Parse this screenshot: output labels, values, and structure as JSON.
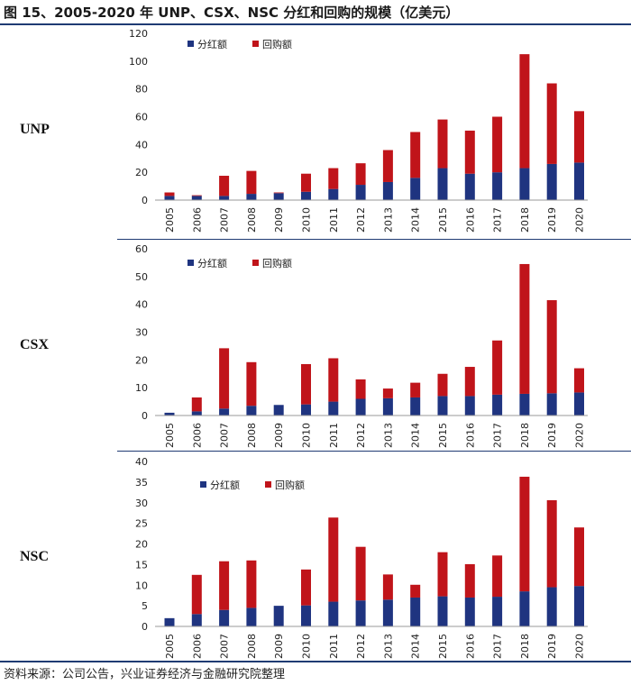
{
  "title": "图 15、2005-2020 年 UNP、CSX、NSC 分红和回购的规模（亿美元）",
  "source": "资料来源：公司公告，兴业证券经济与金融研究院整理",
  "colors": {
    "dividend": "#1f3480",
    "buyback": "#c0141a"
  },
  "chart_data": [
    {
      "type": "bar",
      "stacked": true,
      "label": "UNP",
      "categories": [
        "2005",
        "2006",
        "2007",
        "2008",
        "2009",
        "2010",
        "2011",
        "2012",
        "2013",
        "2014",
        "2015",
        "2016",
        "2017",
        "2018",
        "2019",
        "2020"
      ],
      "series": [
        {
          "name": "分红额",
          "values": [
            3,
            3,
            3,
            4.5,
            5,
            6,
            8,
            11,
            13,
            16,
            23,
            19,
            20,
            23,
            26,
            27
          ]
        },
        {
          "name": "回购额",
          "values": [
            2.5,
            0.5,
            14.5,
            16.5,
            0.5,
            13,
            15,
            15.5,
            23,
            33,
            35,
            31,
            40,
            82,
            58,
            37
          ]
        }
      ],
      "ylim": [
        0,
        120
      ],
      "yticks": [
        0,
        20,
        40,
        60,
        80,
        100,
        120
      ],
      "legend": "top-left"
    },
    {
      "type": "bar",
      "stacked": true,
      "label": "CSX",
      "categories": [
        "2005",
        "2006",
        "2007",
        "2008",
        "2009",
        "2010",
        "2011",
        "2012",
        "2013",
        "2014",
        "2015",
        "2016",
        "2017",
        "2018",
        "2019",
        "2020"
      ],
      "series": [
        {
          "name": "分红额",
          "values": [
            1,
            1.5,
            2.5,
            3.5,
            3.8,
            4,
            5,
            6,
            6.2,
            6.5,
            7,
            7,
            7.5,
            7.8,
            8,
            8.3
          ]
        },
        {
          "name": "回购额",
          "values": [
            0,
            5,
            21.7,
            15.7,
            0,
            14.5,
            15.6,
            7,
            3.5,
            5.3,
            8,
            10.5,
            19.5,
            46.7,
            33.5,
            8.7
          ]
        }
      ],
      "ylim": [
        0,
        60
      ],
      "yticks": [
        0,
        10,
        20,
        30,
        40,
        50,
        60
      ],
      "legend": "top-left"
    },
    {
      "type": "bar",
      "stacked": true,
      "label": "NSC",
      "categories": [
        "2005",
        "2006",
        "2007",
        "2008",
        "2009",
        "2010",
        "2011",
        "2012",
        "2013",
        "2014",
        "2015",
        "2016",
        "2017",
        "2018",
        "2019",
        "2020"
      ],
      "series": [
        {
          "name": "分红额",
          "values": [
            2,
            3,
            4,
            4.5,
            5,
            5.1,
            6,
            6.3,
            6.5,
            7,
            7.3,
            7,
            7.2,
            8.5,
            9.5,
            9.8
          ]
        },
        {
          "name": "回购额",
          "values": [
            0,
            9.5,
            11.8,
            11.5,
            0,
            8.7,
            20.4,
            13,
            6.1,
            3.1,
            10.7,
            8.1,
            10,
            27.8,
            21.1,
            14.2
          ]
        }
      ],
      "ylim": [
        0,
        40
      ],
      "yticks": [
        0,
        5,
        10,
        15,
        20,
        25,
        30,
        35,
        40
      ],
      "legend": "top-left"
    }
  ]
}
